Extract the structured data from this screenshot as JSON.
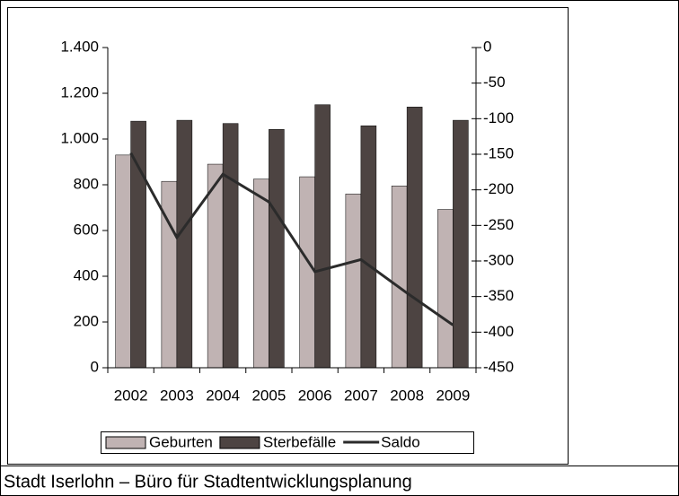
{
  "chart_data": {
    "type": "bar",
    "categories": [
      "2002",
      "2003",
      "2004",
      "2005",
      "2006",
      "2007",
      "2008",
      "2009"
    ],
    "series": [
      {
        "name": "Geburten",
        "type": "bar",
        "color": "#c0b3b3",
        "values": [
          930,
          815,
          890,
          825,
          835,
          760,
          795,
          692
        ]
      },
      {
        "name": "Sterbefälle",
        "type": "bar",
        "color": "#4d4442",
        "values": [
          1078,
          1082,
          1068,
          1042,
          1150,
          1058,
          1140,
          1082
        ]
      },
      {
        "name": "Saldo",
        "type": "line",
        "axis": "y2",
        "color": "#2b2b2b",
        "values": [
          -148,
          -267,
          -178,
          -217,
          -315,
          -298,
          -345,
          -390
        ]
      }
    ],
    "ylim": [
      0,
      1400
    ],
    "yticks": [
      0,
      200,
      400,
      600,
      800,
      {
        "value": 1000,
        "label": "1.000"
      },
      {
        "value": 1200,
        "label": "1.200"
      },
      {
        "value": 1400,
        "label": "1.400"
      }
    ],
    "y2lim": [
      -450,
      0
    ],
    "y2ticks": [
      -450,
      -400,
      -350,
      -300,
      -250,
      -200,
      -150,
      -100,
      -50,
      0
    ],
    "legend": "bottom"
  },
  "footer": "Stadt Iserlohn – Büro für Stadtentwicklungsplanung"
}
